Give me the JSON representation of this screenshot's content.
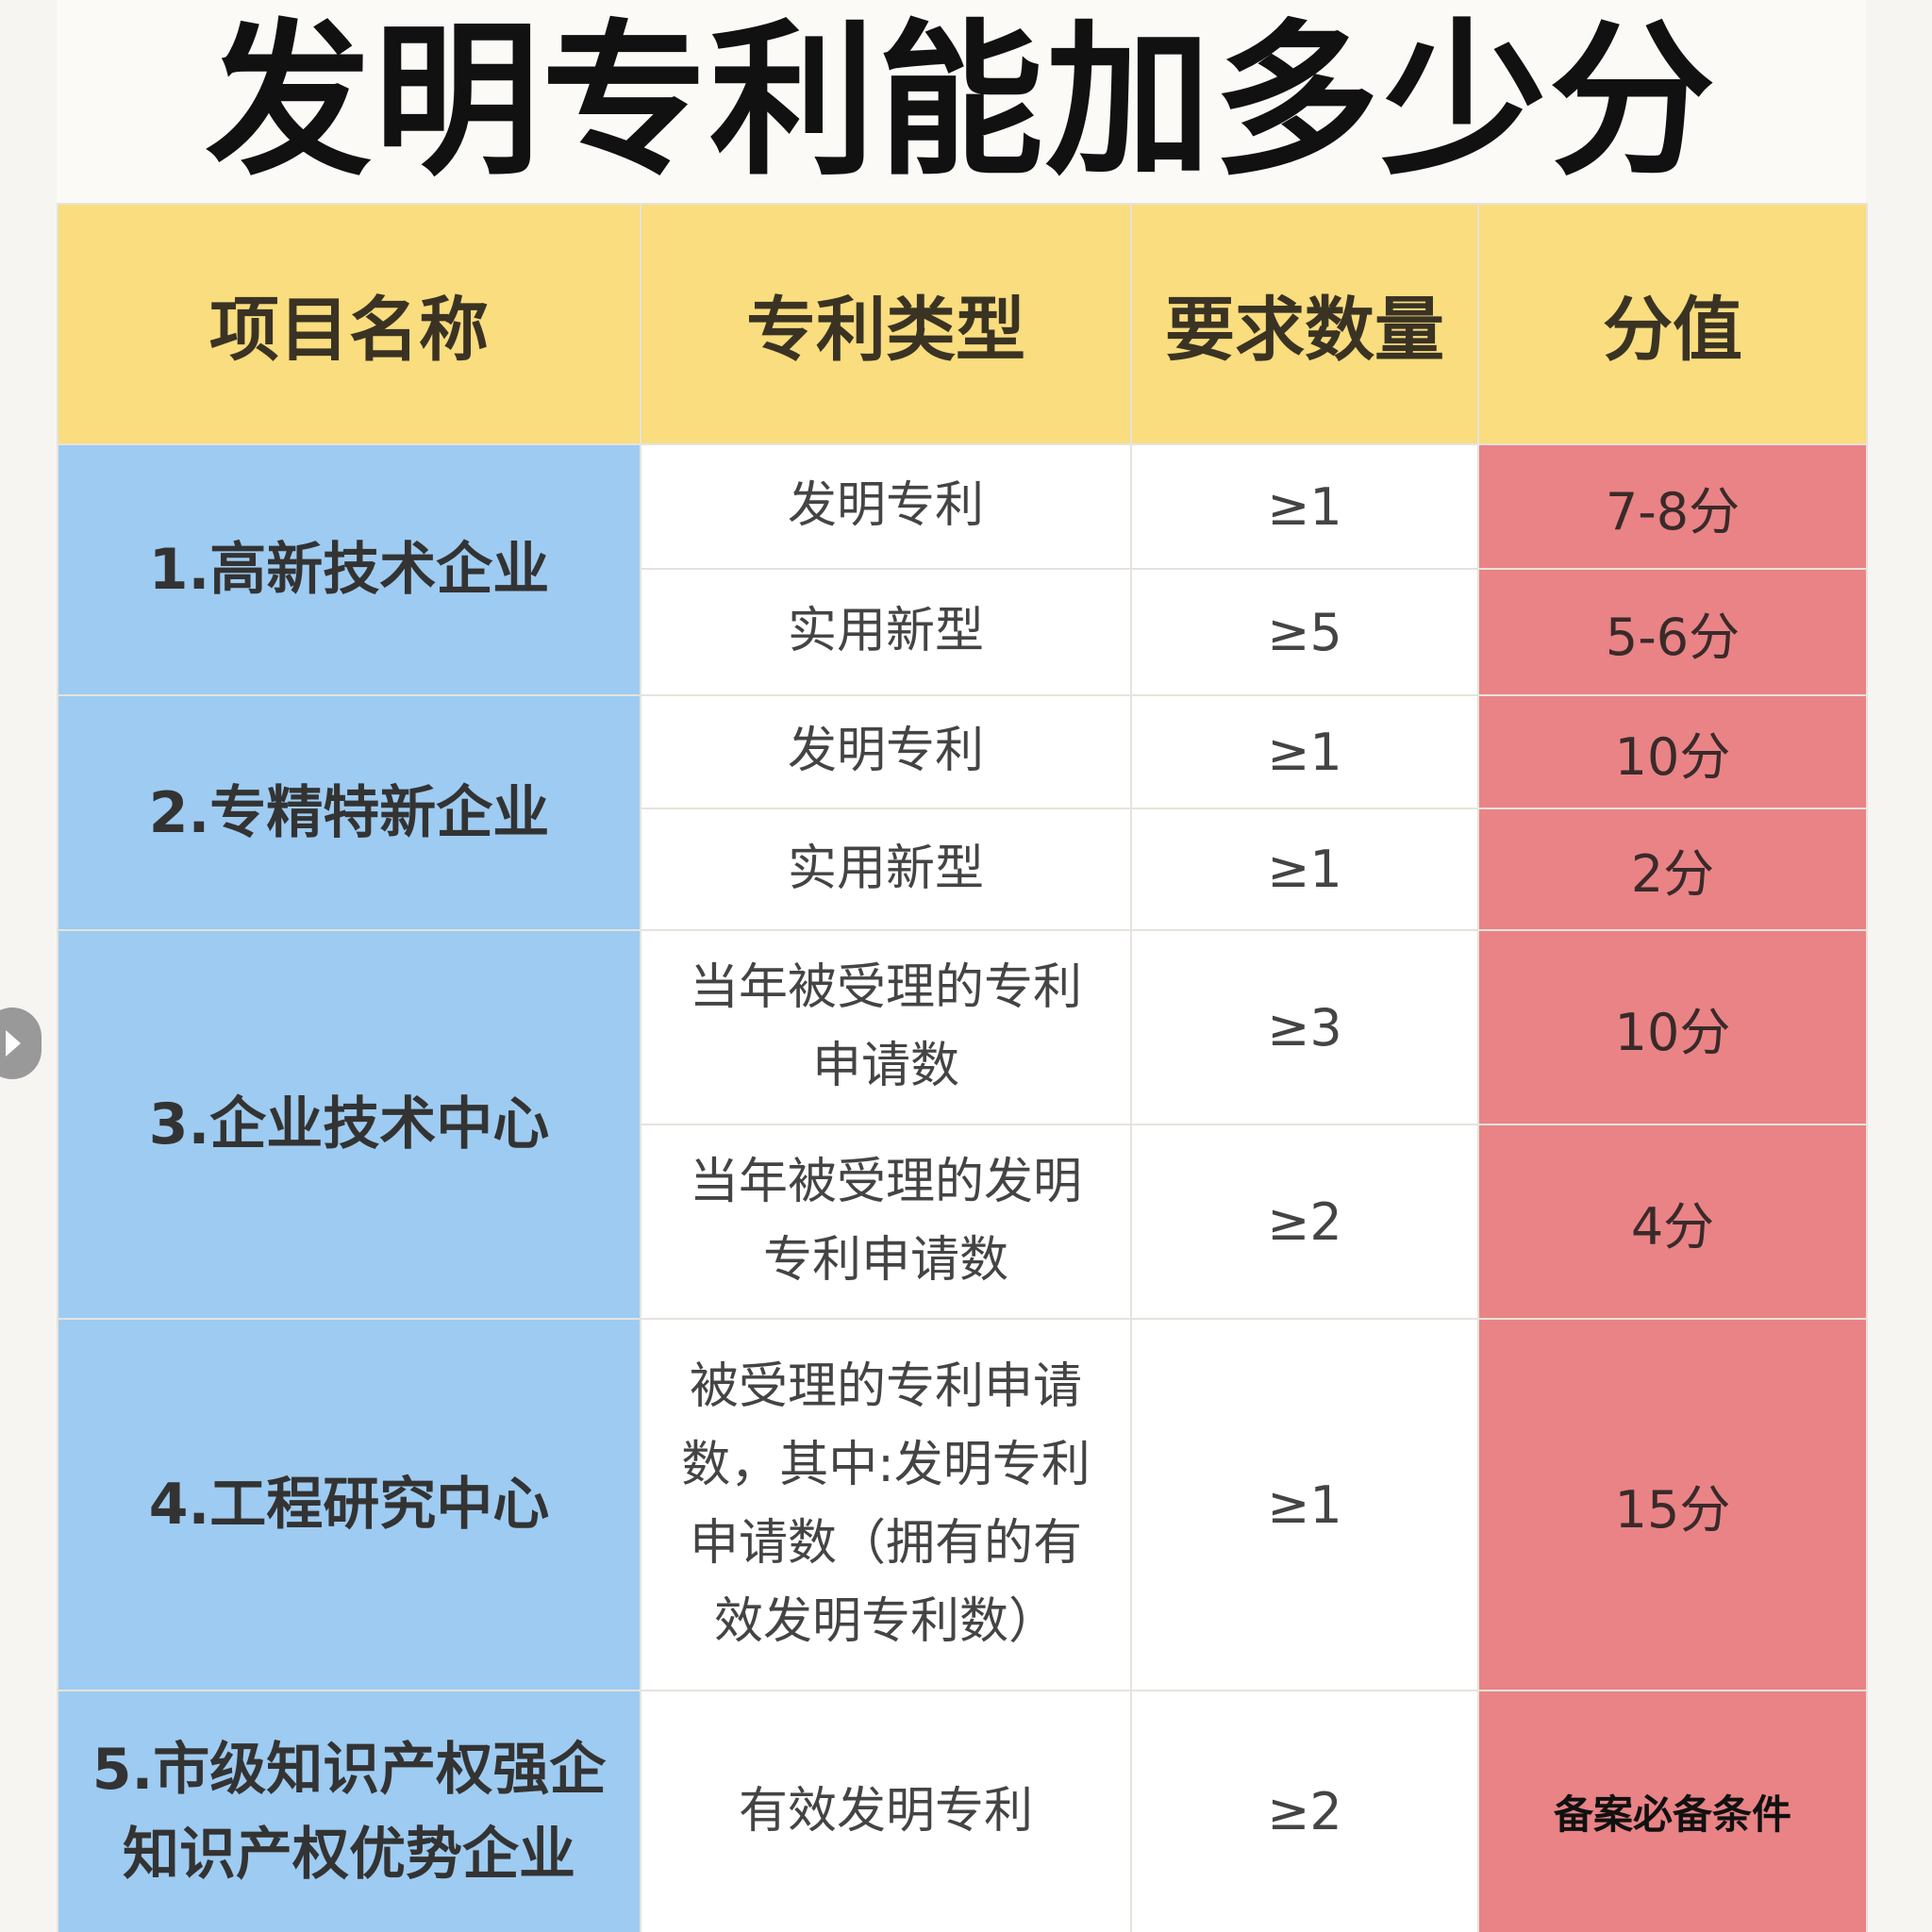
{
  "title": "发明专利能加多少分",
  "headers": {
    "name": "项目名称",
    "type": "专利类型",
    "qty": "要求数量",
    "score": "分值"
  },
  "rows": [
    {
      "name": "1.高新技术企业",
      "type": "发明专利",
      "qty": "≥1",
      "score": "7-8分"
    },
    {
      "type": "实用新型",
      "qty": "≥5",
      "score": "5-6分"
    },
    {
      "name": "2.专精特新企业",
      "type": "发明专利",
      "qty": "≥1",
      "score": "10分"
    },
    {
      "type": "实用新型",
      "qty": "≥1",
      "score": "2分"
    },
    {
      "name": "3.企业技术中心",
      "type_lines": [
        "当年被受理的专利",
        "申请数"
      ],
      "qty": "≥3",
      "score": "10分"
    },
    {
      "type_lines": [
        "当年被受理的发明",
        "专利申请数"
      ],
      "qty": "≥2",
      "score": "4分"
    },
    {
      "name": "4.工程研究中心",
      "type_lines": [
        "被受理的专利申请",
        "数，其中:发明专利",
        "申请数（拥有的有",
        "效发明专利数）"
      ],
      "qty": "≥1",
      "score": "15分"
    },
    {
      "name_lines": [
        "5.市级知识产权强企",
        "知识产权优势企业"
      ],
      "type": "有效发明专利",
      "qty": "≥2",
      "score": "备案必备条件"
    }
  ],
  "colors": {
    "header_bg": "#f9dd7e",
    "name_bg": "#9ecbf1",
    "score_bg": "#e98386",
    "cell_bg": "#ffffff"
  },
  "icons": {
    "side": "chevron-right-icon"
  }
}
